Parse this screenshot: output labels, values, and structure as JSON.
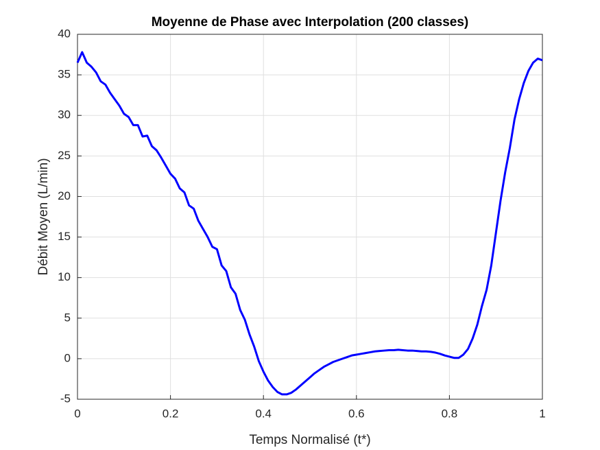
{
  "chart_data": {
    "type": "line",
    "title": "Moyenne de Phase avec Interpolation (200 classes)",
    "xlabel": "Temps Normalisé (t*)",
    "ylabel": "Débit Moyen (L/min)",
    "x": [
      0,
      0.01,
      0.02,
      0.03,
      0.04,
      0.05,
      0.06,
      0.07,
      0.08,
      0.09,
      0.1,
      0.11,
      0.12,
      0.13,
      0.14,
      0.15,
      0.16,
      0.17,
      0.18,
      0.19,
      0.2,
      0.21,
      0.22,
      0.23,
      0.24,
      0.25,
      0.26,
      0.27,
      0.28,
      0.29,
      0.3,
      0.31,
      0.32,
      0.33,
      0.34,
      0.35,
      0.36,
      0.37,
      0.38,
      0.39,
      0.4,
      0.41,
      0.42,
      0.43,
      0.44,
      0.45,
      0.46,
      0.47,
      0.48,
      0.49,
      0.5,
      0.51,
      0.52,
      0.53,
      0.54,
      0.55,
      0.56,
      0.57,
      0.58,
      0.59,
      0.6,
      0.61,
      0.62,
      0.63,
      0.64,
      0.65,
      0.66,
      0.67,
      0.68,
      0.69,
      0.7,
      0.71,
      0.72,
      0.73,
      0.74,
      0.75,
      0.76,
      0.77,
      0.78,
      0.79,
      0.8,
      0.81,
      0.82,
      0.83,
      0.84,
      0.85,
      0.86,
      0.87,
      0.88,
      0.89,
      0.9,
      0.91,
      0.92,
      0.93,
      0.94,
      0.95,
      0.96,
      0.97,
      0.98,
      0.99,
      1
    ],
    "series": [
      {
        "color": "#0000ff",
        "values": [
          36.5,
          37.8,
          36.5,
          36,
          35.3,
          34.2,
          33.8,
          32.8,
          32,
          31.2,
          30.2,
          29.8,
          28.8,
          28.8,
          27.4,
          27.5,
          26.2,
          25.7,
          24.8,
          23.8,
          22.8,
          22.2,
          21,
          20.5,
          18.9,
          18.5,
          17,
          16,
          15,
          13.8,
          13.5,
          11.5,
          10.8,
          8.8,
          8,
          6,
          4.8,
          3,
          1.5,
          -0.3,
          -1.6,
          -2.7,
          -3.5,
          -4.1,
          -4.4,
          -4.4,
          -4.2,
          -3.8,
          -3.3,
          -2.8,
          -2.3,
          -1.8,
          -1.4,
          -1,
          -0.7,
          -0.4,
          -0.2,
          0,
          0.2,
          0.4,
          0.5,
          0.6,
          0.7,
          0.8,
          0.9,
          0.95,
          1,
          1.05,
          1.05,
          1.1,
          1.05,
          1,
          1,
          0.95,
          0.9,
          0.9,
          0.85,
          0.75,
          0.6,
          0.4,
          0.25,
          0.1,
          0.1,
          0.5,
          1.2,
          2.5,
          4.2,
          6.5,
          8.5,
          11.5,
          15.5,
          19.5,
          23,
          26,
          29.5,
          32,
          34,
          35.5,
          36.5,
          37,
          36.8
        ]
      }
    ],
    "xlim": [
      0,
      1
    ],
    "xticks": [
      0,
      0.2,
      0.4,
      0.6,
      0.8,
      1
    ],
    "ylim": [
      -5,
      40
    ],
    "yticks": [
      -5,
      0,
      5,
      10,
      15,
      20,
      25,
      30,
      35,
      40
    ],
    "grid": true
  }
}
